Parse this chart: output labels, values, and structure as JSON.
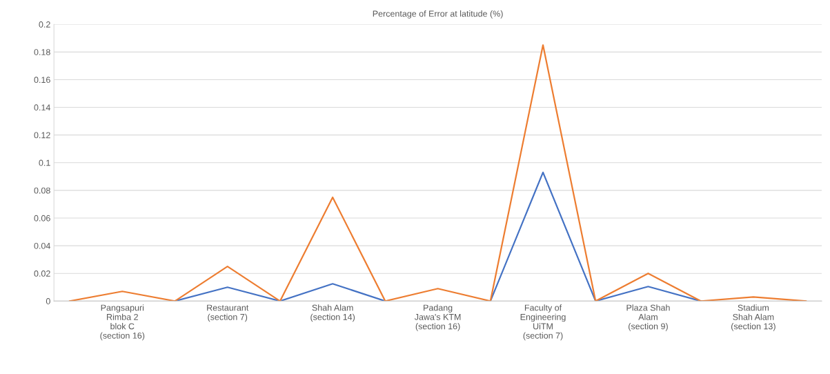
{
  "chart_data": {
    "type": "line",
    "title": "Percentage of Error at latitude (%)",
    "categories": [
      null,
      "Pangsapuri\nRimba 2\nblok C\n(section 16)",
      null,
      "Restaurant\n(section 7)",
      null,
      "Shah Alam\n(section 14)",
      null,
      "Padang\nJawa's KTM\n(section 16)",
      null,
      "Faculty of\nEngineering\nUiTM\n(section 7)",
      null,
      "Plaza Shah\nAlam\n(section 9)",
      null,
      "Stadium\nShah Alam\n(section 13)",
      null
    ],
    "series": [
      {
        "color": "#4472c4",
        "values": [
          null,
          null,
          0,
          0.01,
          0,
          0.0125,
          0,
          null,
          0,
          0.093,
          0,
          0.0105,
          0,
          null,
          null
        ]
      },
      {
        "color": "#ed7d31",
        "values": [
          0,
          0.007,
          0,
          0.025,
          0,
          0.075,
          0,
          0.009,
          0,
          0.185,
          0,
          0.02,
          0,
          0.003,
          0
        ]
      }
    ],
    "ylim": [
      0,
      0.2
    ],
    "yticks": [
      0,
      0.02,
      0.04,
      0.06,
      0.08,
      0.1,
      0.12,
      0.14,
      0.16,
      0.18,
      0.2
    ],
    "grid": "y",
    "marker": "none",
    "line_style": "solid"
  }
}
